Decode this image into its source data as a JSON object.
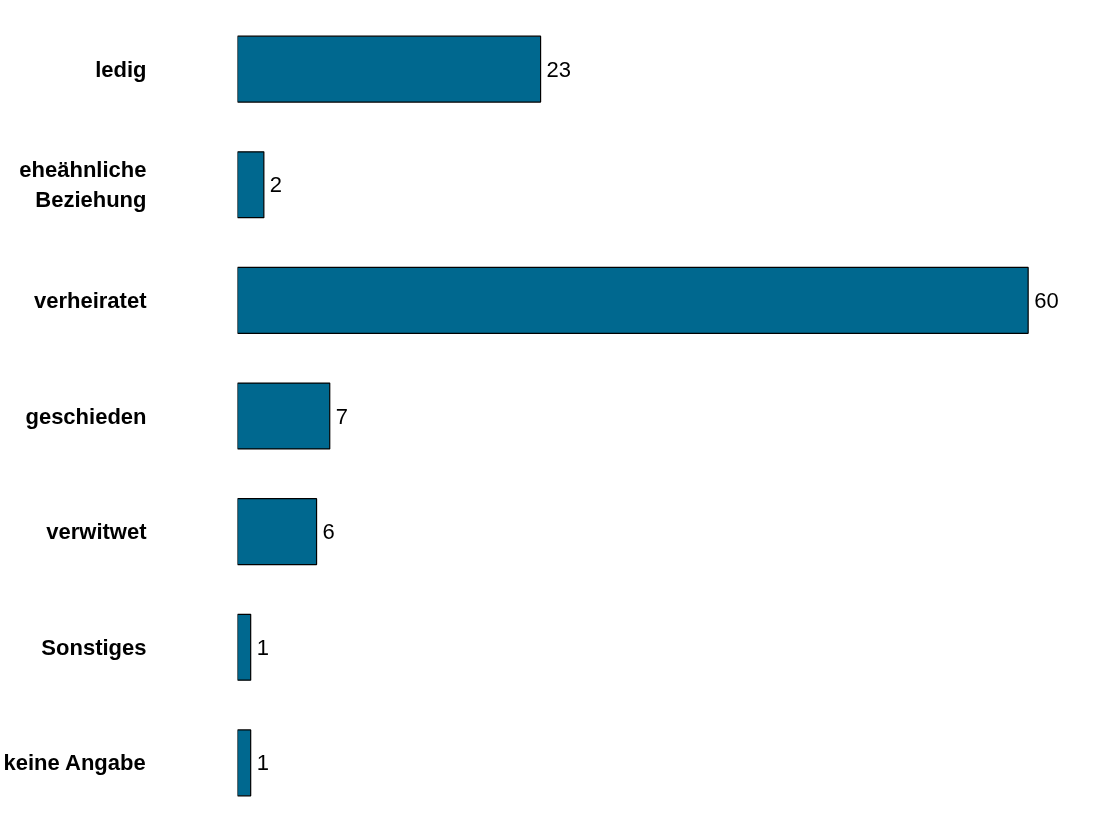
{
  "chart_data": {
    "type": "bar",
    "orientation": "horizontal",
    "categories": [
      "ledig",
      "eheähnliche\nBeziehung",
      "verheiratet",
      "geschieden",
      "verwitwet",
      "Sonstiges",
      "keine Angabe"
    ],
    "values": [
      23,
      2,
      60,
      7,
      6,
      1,
      1
    ],
    "color": "#00688f",
    "data_labels": true,
    "tick_labels": "y"
  }
}
